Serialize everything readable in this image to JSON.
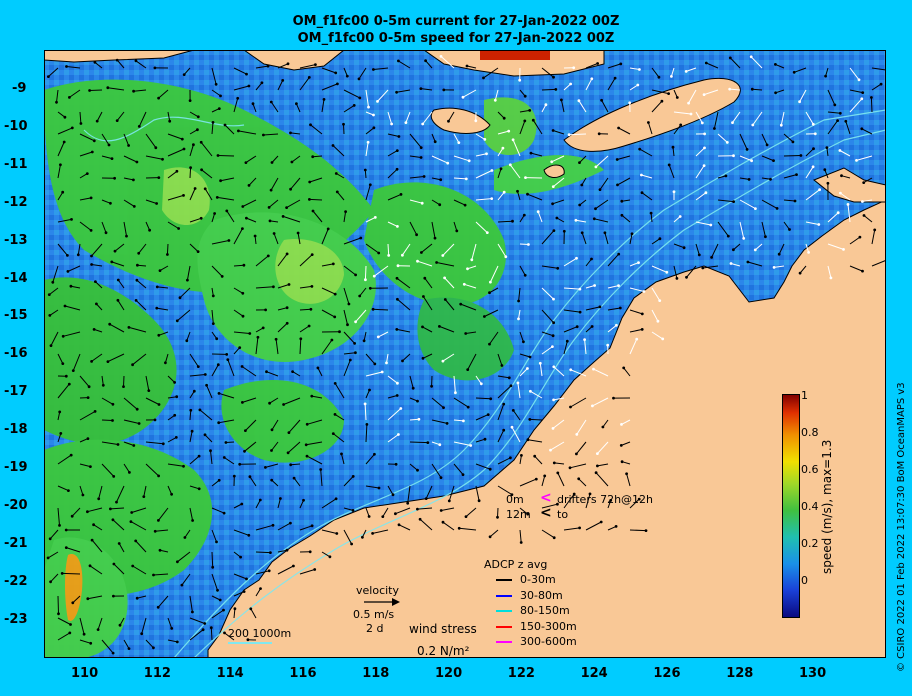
{
  "titles": {
    "line1": "OM_f1fc00 0-5m current for 27-Jan-2022 00Z",
    "line2": "OM_f1fc00 0-5m speed for 27-Jan-2022 00Z"
  },
  "axes": {
    "lon_ticks": [
      "110",
      "112",
      "114",
      "116",
      "118",
      "120",
      "122",
      "124",
      "126",
      "128",
      "130"
    ],
    "lat_ticks": [
      "-9",
      "-10",
      "-11",
      "-12",
      "-13",
      "-14",
      "-15",
      "-16",
      "-17",
      "-18",
      "-19",
      "-20",
      "-21",
      "-22",
      "-23"
    ]
  },
  "colorbar": {
    "ticks": [
      "1",
      "0.8",
      "0.6",
      "0.4",
      "0.2",
      "0"
    ],
    "label": "speed (m/s), max=1.3"
  },
  "drifters": {
    "line1_depth": "0m",
    "line1_text": "drifters 72h@12h",
    "line2_depth": "12m",
    "line2_text": "to"
  },
  "adcp": {
    "title": "ADCP z avg",
    "items": [
      {
        "label": "0-30m",
        "color": "#000000"
      },
      {
        "label": "30-80m",
        "color": "#0000ff"
      },
      {
        "label": "80-150m",
        "color": "#00dddd"
      },
      {
        "label": "150-300m",
        "color": "#ff0000"
      },
      {
        "label": "300-600m",
        "color": "#ff00ff"
      }
    ]
  },
  "velocity_key": {
    "title": "velocity",
    "speed": "0.5 m/s",
    "duration": "2 d"
  },
  "bathymetry_key": "200  1000m",
  "wind_stress": {
    "label": "wind stress",
    "value": "0.2 N/m²"
  },
  "credit": "© CSIRO 2022  01 Feb 2022 13:07:30 BoM OceanMAPS v3",
  "colors": {
    "background": "#00ccff",
    "land": "#f9c896",
    "ocean_slow": "#1a70e8",
    "ocean_fast": "#3cc83c"
  }
}
